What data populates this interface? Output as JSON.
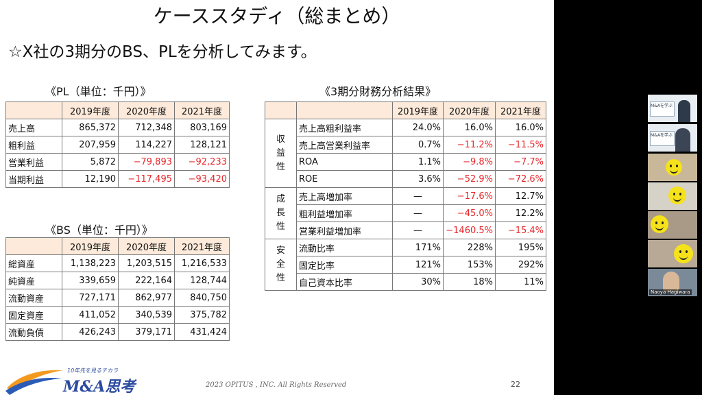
{
  "slide": {
    "title": "ケーススタディ（総まとめ）",
    "subtitle": "☆X社の3期分のBS、PLを分析してみます。",
    "footer": "2023 OPITUS , INC. All Rights Reserved",
    "page_number": "22",
    "logo": {
      "tagline": "10年先を見るチカラ",
      "name": "M&A思考"
    }
  },
  "pl": {
    "caption": "《PL（単位：千円）》",
    "headers": [
      "",
      "2019年度",
      "2020年度",
      "2021年度"
    ],
    "rows": [
      {
        "label": "売上高",
        "values": [
          "865,372",
          "712,348",
          "803,169"
        ]
      },
      {
        "label": "粗利益",
        "values": [
          "207,959",
          "114,227",
          "128,121"
        ]
      },
      {
        "label": "営業利益",
        "values": [
          "5,872",
          "−79,893",
          "−92,233"
        ]
      },
      {
        "label": "当期利益",
        "values": [
          "12,190",
          "−117,495",
          "−93,420"
        ]
      }
    ]
  },
  "bs": {
    "caption": "《BS（単位：千円）》",
    "headers": [
      "",
      "2019年度",
      "2020年度",
      "2021年度"
    ],
    "rows": [
      {
        "label": "総資産",
        "values": [
          "1,138,223",
          "1,203,515",
          "1,216,533"
        ]
      },
      {
        "label": "純資産",
        "values": [
          "339,659",
          "222,164",
          "128,744"
        ]
      },
      {
        "label": "流動資産",
        "values": [
          "727,171",
          "862,977",
          "840,750"
        ]
      },
      {
        "label": "固定資産",
        "values": [
          "411,052",
          "340,539",
          "375,782"
        ]
      },
      {
        "label": "流動負債",
        "values": [
          "426,243",
          "379,171",
          "431,424"
        ]
      }
    ]
  },
  "analysis": {
    "caption": "《3期分財務分析結果》",
    "headers": [
      "",
      "",
      "2019年度",
      "2020年度",
      "2021年度"
    ],
    "groups": [
      {
        "name": "収益性",
        "rows": [
          {
            "label": "売上高粗利益率",
            "values": [
              "24.0%",
              "16.0%",
              "16.0%"
            ]
          },
          {
            "label": "売上高営業利益率",
            "values": [
              "0.7%",
              "−11.2%",
              "−11.5%"
            ]
          },
          {
            "label": "ROA",
            "values": [
              "1.1%",
              "−9.8%",
              "−7.7%"
            ]
          },
          {
            "label": "ROE",
            "values": [
              "3.6%",
              "−52.9%",
              "−72.6%"
            ]
          }
        ]
      },
      {
        "name": "成長性",
        "rows": [
          {
            "label": "売上高増加率",
            "values": [
              "—",
              "−17.6%",
              "12.7%"
            ]
          },
          {
            "label": "粗利益増加率",
            "values": [
              "—",
              "−45.0%",
              "12.2%"
            ]
          },
          {
            "label": "営業利益増加率",
            "values": [
              "—",
              "−1460.5%",
              "−15.4%"
            ]
          }
        ]
      },
      {
        "name": "安全性",
        "rows": [
          {
            "label": "流動比率",
            "values": [
              "171%",
              "228%",
              "195%"
            ]
          },
          {
            "label": "固定比率",
            "values": [
              "121%",
              "153%",
              "292%"
            ]
          },
          {
            "label": "自己資本比率",
            "values": [
              "30%",
              "18%",
              "11%"
            ]
          }
        ]
      }
    ]
  },
  "participants": {
    "tile1_text": "M&Aを学ぶ",
    "tile2_text": "M&Aを学ぶ",
    "host_name": "Naoya Hagiwara"
  },
  "colors": {
    "negative": "#e8262a",
    "header_bg": "#fdeada",
    "smiley": "#f5e21b"
  }
}
